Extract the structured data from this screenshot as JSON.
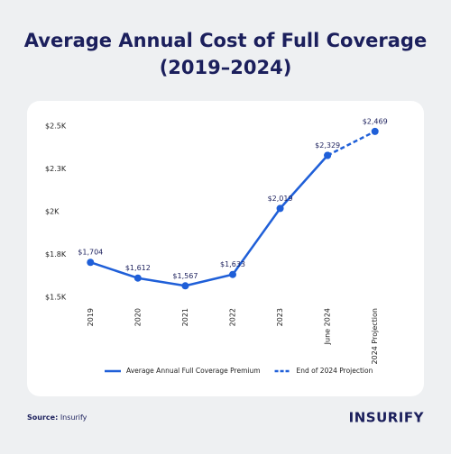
{
  "chart_data": {
    "type": "line",
    "title": [
      "Average Annual Cost of Full Coverage",
      "(2019–2024)"
    ],
    "categories": [
      "2019",
      "2020",
      "2021",
      "2022",
      "2023",
      "June 2024",
      "2024 Projection"
    ],
    "series": [
      {
        "name": "Average Annual Full Coverage Premium",
        "color": "#1f5fd8",
        "line_style": "solid",
        "values": [
          1704,
          1612,
          1567,
          1633,
          2019,
          2329,
          null
        ],
        "value_labels": [
          "$1,704",
          "$1,612",
          "$1,567",
          "$1,633",
          "$2,019",
          "$2,329",
          null
        ]
      },
      {
        "name": "End of 2024 Projection",
        "color": "#1f5fd8",
        "line_style": "dashed",
        "values": [
          null,
          null,
          null,
          null,
          null,
          2329,
          2469
        ],
        "value_labels": [
          null,
          null,
          null,
          null,
          null,
          null,
          "$2,469"
        ]
      }
    ],
    "ylim": [
      1500,
      2500
    ],
    "yticks": [
      {
        "value": 1500,
        "label": "$1.5K"
      },
      {
        "value": 1750,
        "label": "$1.8K"
      },
      {
        "value": 2000,
        "label": "$2K"
      },
      {
        "value": 2250,
        "label": "$2.3K"
      },
      {
        "value": 2500,
        "label": "$2.5K"
      }
    ],
    "grid": false,
    "legend": "bottom",
    "source_label": "Source:",
    "source": "Insurify",
    "logo": "INSURIFY"
  }
}
